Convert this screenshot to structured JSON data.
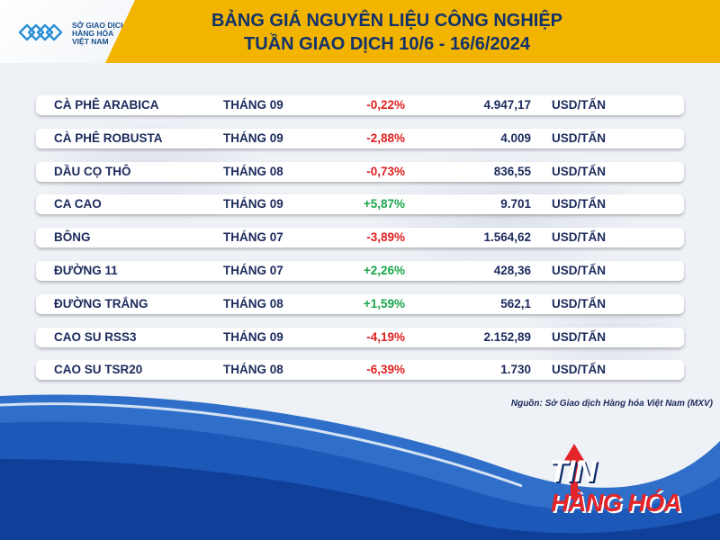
{
  "header": {
    "logo_lines": [
      "SỞ GIAO DỊCH",
      "HÀNG HÓA",
      "VIỆT NAM"
    ],
    "title_line1": "BẢNG GIÁ NGUYÊN LIỆU CÔNG NGHIỆP",
    "title_line2": "TUẦN GIAO DỊCH 10/6 - 16/6/2024"
  },
  "rows": [
    {
      "name": "CÀ PHÊ ARABICA",
      "month": "THÁNG 09",
      "change": "-0,22%",
      "price": "4.947,17",
      "unit": "USD/TẤN"
    },
    {
      "name": "CÀ PHÊ ROBUSTA",
      "month": "THÁNG 09",
      "change": "-2,88%",
      "price": "4.009",
      "unit": "USD/TẤN"
    },
    {
      "name": "DẦU CỌ THÔ",
      "month": "THÁNG 08",
      "change": "-0,73%",
      "price": "836,55",
      "unit": "USD/TẤN"
    },
    {
      "name": "CA CAO",
      "month": "THÁNG 09",
      "change": "+5,87%",
      "price": "9.701",
      "unit": "USD/TẤN"
    },
    {
      "name": "BÔNG",
      "month": "THÁNG 07",
      "change": "-3,89%",
      "price": "1.564,62",
      "unit": "USD/TẤN"
    },
    {
      "name": "ĐƯỜNG 11",
      "month": "THÁNG 07",
      "change": "+2,26%",
      "price": "428,36",
      "unit": "USD/TẤN"
    },
    {
      "name": "ĐƯỜNG TRẮNG",
      "month": "THÁNG 08",
      "change": "+1,59%",
      "price": "562,1",
      "unit": "USD/TẤN"
    },
    {
      "name": "CAO SU RSS3",
      "month": "THÁNG 09",
      "change": "-4,19%",
      "price": "2.152,89",
      "unit": "USD/TẤN"
    },
    {
      "name": "CAO SU TSR20",
      "month": "THÁNG 08",
      "change": "-6,39%",
      "price": "1.730",
      "unit": "USD/TẤN"
    }
  ],
  "source": "Nguồn: Sở Giao dịch Hàng hóa Việt Nam (MXV)",
  "brand": {
    "line1": "TIN",
    "line2": "HÀNG HÓA"
  },
  "colors": {
    "header_gold": "#f3b400",
    "title_navy": "#12326b",
    "negative": "#e02020",
    "positive": "#1aa64b",
    "brand_red": "#e3252a"
  }
}
